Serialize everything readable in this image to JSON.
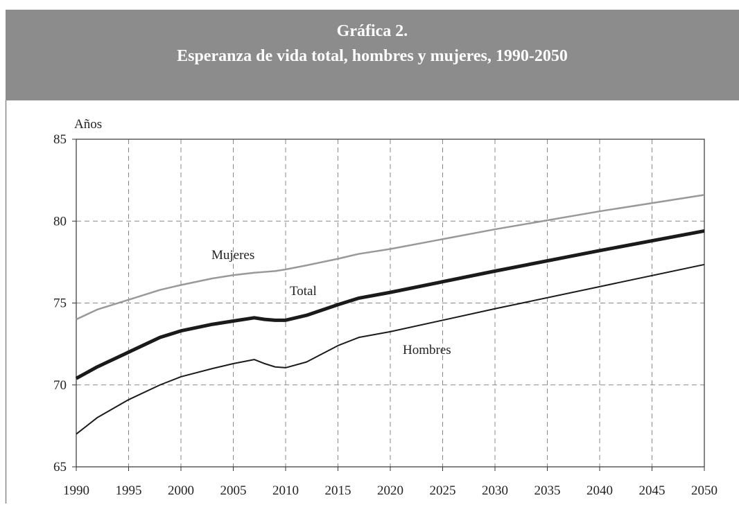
{
  "chart_data": {
    "type": "line",
    "title": "Gráfica 2.",
    "subtitle": "Esperanza de vida total, hombres y mujeres, 1990-2050",
    "y_label": "Años",
    "x": [
      1990,
      1992,
      1995,
      1998,
      2000,
      2003,
      2005,
      2007,
      2008,
      2009,
      2010,
      2012,
      2015,
      2017,
      2020,
      2030,
      2040,
      2050
    ],
    "series": [
      {
        "name": "Mujeres",
        "color": "#999999",
        "line_width": 2.5,
        "values": [
          74.0,
          74.6,
          75.2,
          75.8,
          76.1,
          76.5,
          76.7,
          76.85,
          76.9,
          76.95,
          77.05,
          77.3,
          77.7,
          78.0,
          78.3,
          79.5,
          80.6,
          81.6
        ]
      },
      {
        "name": "Total",
        "color": "#1a1a1a",
        "line_width": 5,
        "values": [
          70.4,
          71.1,
          72.0,
          72.9,
          73.3,
          73.7,
          73.9,
          74.1,
          74.0,
          73.95,
          73.95,
          74.25,
          74.9,
          75.3,
          75.65,
          76.95,
          78.2,
          79.4
        ]
      },
      {
        "name": "Hombres",
        "color": "#1a1a1a",
        "line_width": 2,
        "values": [
          67.0,
          68.0,
          69.1,
          70.0,
          70.5,
          71.0,
          71.3,
          71.55,
          71.3,
          71.1,
          71.05,
          71.4,
          72.4,
          72.9,
          73.25,
          74.65,
          76.0,
          77.35
        ]
      }
    ],
    "xlim": [
      1990,
      2050
    ],
    "xticks": [
      1990,
      1995,
      2000,
      2005,
      2010,
      2015,
      2020,
      2025,
      2030,
      2035,
      2040,
      2045,
      2050
    ],
    "ylim": [
      65,
      85
    ],
    "yticks": [
      65,
      70,
      75,
      80,
      85
    ],
    "grid": true
  }
}
